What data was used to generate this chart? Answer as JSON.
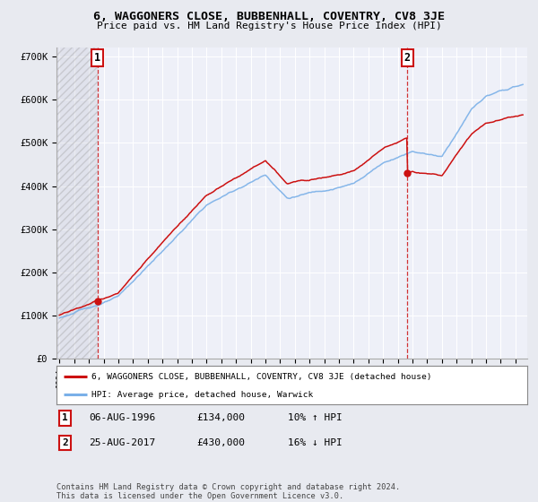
{
  "title": "6, WAGGONERS CLOSE, BUBBENHALL, COVENTRY, CV8 3JE",
  "subtitle": "Price paid vs. HM Land Registry's House Price Index (HPI)",
  "ylim": [
    0,
    720000
  ],
  "yticks": [
    0,
    100000,
    200000,
    300000,
    400000,
    500000,
    600000,
    700000
  ],
  "ytick_labels": [
    "£0",
    "£100K",
    "£200K",
    "£300K",
    "£400K",
    "£500K",
    "£600K",
    "£700K"
  ],
  "xlim_start": 1993.8,
  "xlim_end": 2025.8,
  "bg_color": "#e8eaf0",
  "plot_bg": "#eef0f8",
  "grid_color": "#ffffff",
  "sale1_x": 1996.59,
  "sale1_y": 134000,
  "sale2_x": 2017.64,
  "sale2_y": 430000,
  "legend_line1": "6, WAGGONERS CLOSE, BUBBENHALL, COVENTRY, CV8 3JE (detached house)",
  "legend_line2": "HPI: Average price, detached house, Warwick",
  "hpi_color": "#7ab0e8",
  "price_color": "#cc1111",
  "marker_color": "#cc1111",
  "footer": "Contains HM Land Registry data © Crown copyright and database right 2024.\nThis data is licensed under the Open Government Licence v3.0."
}
